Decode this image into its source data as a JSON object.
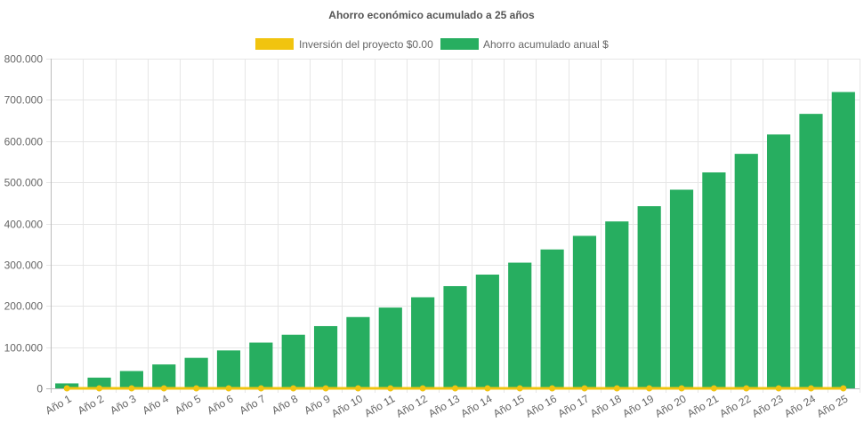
{
  "chart_data": {
    "type": "bar",
    "title": "Ahorro económico acumulado a 25 años",
    "categories": [
      "Año 1",
      "Año 2",
      "Año 3",
      "Año 4",
      "Año 5",
      "Año 6",
      "Año 7",
      "Año 8",
      "Año 9",
      "Año 10",
      "Año 11",
      "Año 12",
      "Año 13",
      "Año 14",
      "Año 15",
      "Año 16",
      "Año 17",
      "Año 18",
      "Año 19",
      "Año 20",
      "Año 21",
      "Año 22",
      "Año 23",
      "Año 24",
      "Año 25"
    ],
    "series": [
      {
        "name": "Inversión del proyecto $0.00",
        "type": "line",
        "color": "#f1c40f",
        "values": [
          0,
          0,
          0,
          0,
          0,
          0,
          0,
          0,
          0,
          0,
          0,
          0,
          0,
          0,
          0,
          0,
          0,
          0,
          0,
          0,
          0,
          0,
          0,
          0,
          0
        ]
      },
      {
        "name": "Ahorro acumulado anual $",
        "type": "bar",
        "color": "#27ae60",
        "values": [
          12000,
          26000,
          42000,
          58000,
          74000,
          92000,
          111000,
          130000,
          151000,
          173000,
          196000,
          221000,
          248000,
          276000,
          305000,
          337000,
          370000,
          405000,
          442000,
          482000,
          524000,
          569000,
          616000,
          666000,
          719000
        ]
      }
    ],
    "ylim": [
      0,
      800000
    ],
    "yticks": [
      0,
      100000,
      200000,
      300000,
      400000,
      500000,
      600000,
      700000,
      800000
    ],
    "ytick_labels": [
      "0",
      "100.000",
      "200.000",
      "300.000",
      "400.000",
      "500.000",
      "600.000",
      "700.000",
      "800.000"
    ],
    "grid": true,
    "legend_position": "top"
  }
}
